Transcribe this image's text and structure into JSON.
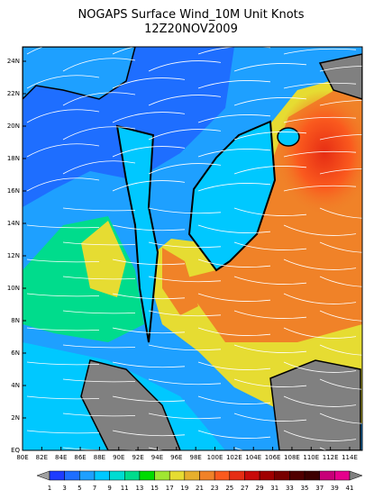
{
  "title": "NOGAPS Surface Wind_10M Unit Knots",
  "subtitle": "12Z20NOV2009",
  "lat_labels": [
    "EQ",
    "2N",
    "4N",
    "6N",
    "8N",
    "10N",
    "12N",
    "14N",
    "16N",
    "18N",
    "20N",
    "22N",
    "24N"
  ],
  "lon_labels": [
    "80E",
    "82E",
    "84E",
    "86E",
    "88E",
    "90E",
    "92E",
    "94E",
    "96E",
    "98E",
    "100E",
    "102E",
    "104E",
    "106E",
    "108E",
    "110E",
    "112E",
    "114E"
  ],
  "colorbar": {
    "labels": [
      1,
      3,
      5,
      7,
      9,
      11,
      13,
      15,
      17,
      19,
      21,
      23,
      25,
      27,
      29,
      31,
      33,
      35,
      37,
      39,
      41
    ],
    "colors": [
      "#a0a0a0",
      "#1e3cff",
      "#1e6eff",
      "#1ea0ff",
      "#00c8ff",
      "#00dcd2",
      "#00dc8c",
      "#00dc00",
      "#a0e632",
      "#e6dc32",
      "#e6af2d",
      "#f08228",
      "#fa5a1e",
      "#e62d14",
      "#c80a0a",
      "#a00000",
      "#780000",
      "#500000",
      "#3c0000",
      "#c80078",
      "#e6008c",
      "#808080"
    ]
  }
}
